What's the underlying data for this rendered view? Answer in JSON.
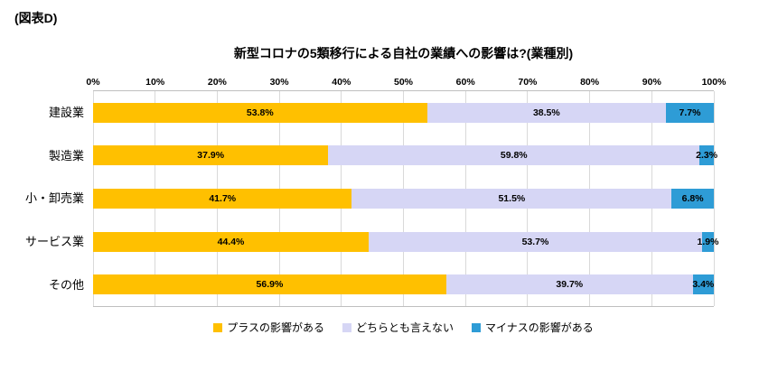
{
  "figure_label": "(図表D)",
  "chart_data": {
    "type": "bar",
    "stacked": true,
    "orientation": "horizontal",
    "title": "新型コロナの5類移行による自社の業績への影響は?(業種別)",
    "categories": [
      "建設業",
      "製造業",
      "小・卸売業",
      "サービス業",
      "その他"
    ],
    "series": [
      {
        "name": "プラスの影響がある",
        "color": "#FFC000",
        "values": [
          53.8,
          37.9,
          41.7,
          44.4,
          56.9
        ]
      },
      {
        "name": "どちらとも言えない",
        "color": "#D6D6F5",
        "values": [
          38.5,
          59.8,
          51.5,
          53.7,
          39.7
        ]
      },
      {
        "name": "マイナスの影響がある",
        "color": "#2E9CD6",
        "values": [
          7.7,
          2.3,
          6.8,
          1.9,
          3.4
        ]
      }
    ],
    "x_ticks": [
      "0%",
      "10%",
      "20%",
      "30%",
      "40%",
      "50%",
      "60%",
      "70%",
      "80%",
      "90%",
      "100%"
    ],
    "xlim": [
      0,
      100
    ],
    "value_suffix": "%",
    "grid": true,
    "legend_position": "bottom"
  }
}
